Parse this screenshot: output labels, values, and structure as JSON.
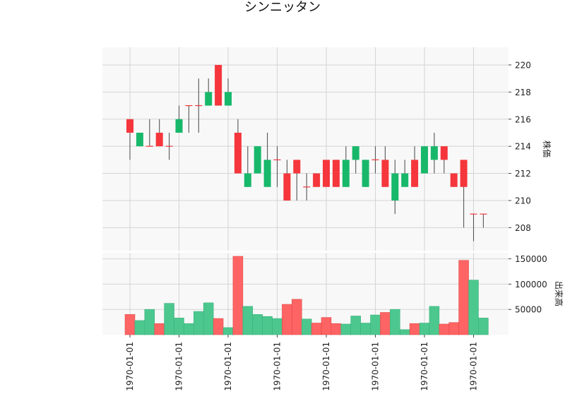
{
  "chart_data": {
    "type": "candlestick",
    "title": "シンニッタン",
    "price_axis": {
      "label": "株価",
      "ylim": [
        206.3,
        221.3
      ],
      "ticks": [
        208,
        210,
        212,
        214,
        216,
        218,
        220
      ]
    },
    "volume_axis": {
      "label": "出来高",
      "ylim": [
        0,
        162000
      ],
      "ticks": [
        50000,
        100000,
        150000
      ],
      "tick_labels": [
        "50000",
        "100000",
        "150000"
      ]
    },
    "x_tick_labels": [
      "1970-01-01",
      "1970-01-01",
      "1970-01-01",
      "1970-01-01",
      "1970-01-01",
      "1970-01-01",
      "1970-01-01",
      "1970-01-01"
    ],
    "x_tick_positions": [
      0,
      5,
      10,
      15,
      20,
      25,
      30,
      35
    ],
    "grid": true,
    "colors": {
      "up": "#18b86a",
      "down": "#f5363c",
      "up_volume": "#4cc88f",
      "down_volume": "#ff6464",
      "wick": "#555555",
      "panel_bg": "#f8f8f8",
      "grid": "#d4d4d4"
    },
    "candles": [
      {
        "open": 216,
        "high": 216,
        "low": 213,
        "close": 215,
        "volume": 40000
      },
      {
        "open": 214,
        "high": 215,
        "low": 214,
        "close": 215,
        "volume": 28000
      },
      {
        "open": 214,
        "high": 216,
        "low": 214,
        "close": 214,
        "volume": 50000
      },
      {
        "open": 215,
        "high": 216,
        "low": 214,
        "close": 214,
        "volume": 22000
      },
      {
        "open": 214,
        "high": 215,
        "low": 213,
        "close": 214,
        "volume": 62000
      },
      {
        "open": 215,
        "high": 217,
        "low": 215,
        "close": 216,
        "volume": 33000
      },
      {
        "open": 217,
        "high": 217,
        "low": 215,
        "close": 217,
        "volume": 22000
      },
      {
        "open": 217,
        "high": 219,
        "low": 215,
        "close": 217,
        "volume": 46000
      },
      {
        "open": 217,
        "high": 219,
        "low": 217,
        "close": 218,
        "volume": 63000
      },
      {
        "open": 220,
        "high": 220,
        "low": 217,
        "close": 217,
        "volume": 32000
      },
      {
        "open": 217,
        "high": 219,
        "low": 217,
        "close": 218,
        "volume": 14000
      },
      {
        "open": 215,
        "high": 216,
        "low": 212,
        "close": 212,
        "volume": 155000
      },
      {
        "open": 211,
        "high": 214,
        "low": 211,
        "close": 212,
        "volume": 56000
      },
      {
        "open": 212,
        "high": 214,
        "low": 212,
        "close": 214,
        "volume": 40000
      },
      {
        "open": 211,
        "high": 215,
        "low": 211,
        "close": 213,
        "volume": 36000
      },
      {
        "open": 213,
        "high": 214,
        "low": 211,
        "close": 213,
        "volume": 32000
      },
      {
        "open": 212,
        "high": 213,
        "low": 210,
        "close": 210,
        "volume": 60000
      },
      {
        "open": 213,
        "high": 213,
        "low": 210,
        "close": 212,
        "volume": 70000
      },
      {
        "open": 211,
        "high": 212,
        "low": 210,
        "close": 211,
        "volume": 31000
      },
      {
        "open": 212,
        "high": 212,
        "low": 211,
        "close": 211,
        "volume": 23000
      },
      {
        "open": 213,
        "high": 213,
        "low": 211,
        "close": 211,
        "volume": 34000
      },
      {
        "open": 213,
        "high": 213,
        "low": 211,
        "close": 211,
        "volume": 22000
      },
      {
        "open": 211,
        "high": 214,
        "low": 211,
        "close": 213,
        "volume": 21000
      },
      {
        "open": 213,
        "high": 214,
        "low": 212,
        "close": 214,
        "volume": 37000
      },
      {
        "open": 211,
        "high": 213,
        "low": 211,
        "close": 213,
        "volume": 23000
      },
      {
        "open": 213,
        "high": 214,
        "low": 212,
        "close": 213,
        "volume": 39000
      },
      {
        "open": 213,
        "high": 214,
        "low": 211,
        "close": 211,
        "volume": 44000
      },
      {
        "open": 210,
        "high": 213,
        "low": 209,
        "close": 212,
        "volume": 50000
      },
      {
        "open": 211,
        "high": 213,
        "low": 211,
        "close": 212,
        "volume": 10000
      },
      {
        "open": 213,
        "high": 214,
        "low": 211,
        "close": 211,
        "volume": 22000
      },
      {
        "open": 212,
        "high": 214,
        "low": 212,
        "close": 214,
        "volume": 23000
      },
      {
        "open": 213,
        "high": 215,
        "low": 212,
        "close": 214,
        "volume": 56000
      },
      {
        "open": 214,
        "high": 214,
        "low": 212,
        "close": 213,
        "volume": 21000
      },
      {
        "open": 212,
        "high": 212,
        "low": 211,
        "close": 211,
        "volume": 24000
      },
      {
        "open": 213,
        "high": 213,
        "low": 208,
        "close": 211,
        "volume": 147000
      },
      {
        "open": 209,
        "high": 209,
        "low": 207,
        "close": 209,
        "volume": 108000
      },
      {
        "open": 209,
        "high": 209,
        "low": 208,
        "close": 209,
        "volume": 33000
      }
    ]
  }
}
